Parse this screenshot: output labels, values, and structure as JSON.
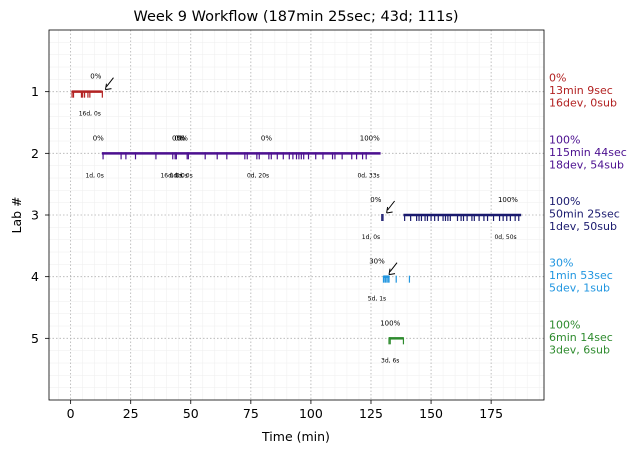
{
  "chart_data": {
    "type": "timeline",
    "title": "Week 9 Workflow (187min 25sec; 43d; 111s)",
    "xlabel": "Time (min)",
    "ylabel": "Lab #",
    "xlim": [
      -9,
      197
    ],
    "ylim": [
      6.0,
      0.0
    ],
    "xticks": [
      0,
      25,
      50,
      75,
      100,
      125,
      150,
      175
    ],
    "yticks": [
      1,
      2,
      3,
      4,
      5
    ],
    "grid": true,
    "labs": [
      {
        "lab": 1,
        "color": "#b22222",
        "bar": [
          0.5,
          13.0
        ],
        "events": [
          0.6,
          1.2,
          4.5,
          5.0,
          5.8,
          7.2,
          8.0,
          13.2
        ],
        "annotations": [
          {
            "x": 10.5,
            "text": "0%"
          }
        ],
        "arrow_x": 14.5,
        "time_labels": [
          {
            "x": 8,
            "text": "16d, 0s"
          }
        ],
        "summary": [
          "0%",
          "13min 9sec",
          "16dev, 0sub"
        ]
      },
      {
        "lab": 2,
        "color": "#4b0f8f",
        "bar": [
          13.0,
          129.0
        ],
        "events": [
          13.5,
          21,
          23,
          27,
          35.5,
          42.5,
          43.5,
          44.0,
          48.5,
          49.0,
          56,
          61,
          65,
          72.5,
          73.5,
          77.5,
          78.5,
          82.5,
          83.5,
          86,
          88.5,
          91,
          92.5,
          94,
          95,
          96,
          97,
          99,
          102,
          105,
          109,
          110,
          113,
          117,
          119,
          121.5,
          123
        ],
        "annotations": [
          {
            "x": 11.5,
            "text": "0%"
          },
          {
            "x": 44.5,
            "text": "0%"
          },
          {
            "x": 45.5,
            "text": "0%"
          },
          {
            "x": 46.5,
            "text": "0%"
          },
          {
            "x": 81.5,
            "text": "0%"
          },
          {
            "x": 124.5,
            "text": "100%"
          }
        ],
        "time_labels": [
          {
            "x": 10,
            "text": "1d, 0s"
          },
          {
            "x": 42,
            "text": "16d, 0s"
          },
          {
            "x": 45,
            "text": "0d, 0s"
          },
          {
            "x": 47,
            "text": "0d, 0s"
          },
          {
            "x": 78,
            "text": "0d, 20s"
          },
          {
            "x": 124,
            "text": "0d, 33s"
          }
        ],
        "summary": [
          "100%",
          "115min 44sec",
          "18dev, 54sub"
        ]
      },
      {
        "lab": 3,
        "color": "#1a1a6e",
        "bar": [
          138.5,
          187.5
        ],
        "events": [
          129.5,
          130,
          139,
          141.5,
          144,
          145,
          146,
          147.5,
          148.5,
          150,
          151.5,
          153,
          155,
          156,
          157,
          158,
          161,
          162.5,
          163.5,
          165,
          167,
          168,
          170,
          172,
          173.5,
          176,
          178.5,
          180,
          181.5,
          183,
          185,
          186.5
        ],
        "annotations": [
          {
            "x": 127,
            "text": "0%"
          },
          {
            "x": 182,
            "text": "100%"
          }
        ],
        "arrow_x": 131.5,
        "time_labels": [
          {
            "x": 125,
            "text": "1d, 0s"
          },
          {
            "x": 181,
            "text": "0d, 50s"
          }
        ],
        "summary": [
          "100%",
          "50min 25sec",
          "1dev, 50sub"
        ]
      },
      {
        "lab": 4,
        "color": "#2196e0",
        "bar": [
          130.2,
          132.5
        ],
        "events": [
          130.2,
          130.8,
          131.3,
          132,
          132.5,
          135.5,
          141
        ],
        "annotations": [
          {
            "x": 127.5,
            "text": "30%"
          }
        ],
        "arrow_x": 132.5,
        "time_labels": [
          {
            "x": 127.5,
            "text": "5d, 1s"
          }
        ],
        "summary": [
          "30%",
          "1min 53sec",
          "5dev, 1sub"
        ]
      },
      {
        "lab": 5,
        "color": "#2e8b2e",
        "bar": [
          132.5,
          138.5
        ],
        "events": [
          132.5,
          133.0,
          138.5
        ],
        "annotations": [
          {
            "x": 133,
            "text": "100%"
          }
        ],
        "time_labels": [
          {
            "x": 133,
            "text": "3d, 6s"
          }
        ],
        "summary": [
          "100%",
          "6min 14sec",
          "3dev, 6sub"
        ]
      }
    ]
  }
}
